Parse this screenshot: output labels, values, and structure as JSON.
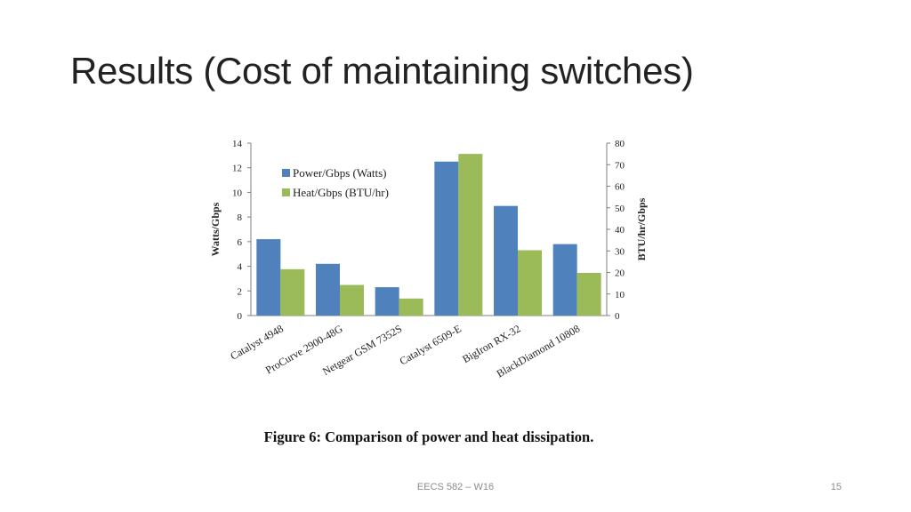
{
  "slide": {
    "title": "Results (Cost of maintaining switches)",
    "footer": "EECS 582 – W16",
    "page_number": "15"
  },
  "figure": {
    "caption": "Figure 6:  Comparison of power and heat dissipation."
  },
  "colors": {
    "power": "#4f81bd",
    "heat": "#9bbb59",
    "axis": "#7f7f7f"
  },
  "chart_data": {
    "type": "bar",
    "title": "",
    "categories": [
      "Catalyst 4948",
      "ProCurve 2900-48G",
      "Netgear GSM 7352S",
      "Catalyst 6509-E",
      "BigIron RX-32",
      "BlackDiamond 10808"
    ],
    "series": [
      {
        "name": "Power/Gbps (Watts)",
        "axis": "left",
        "values": [
          6.2,
          4.2,
          2.3,
          12.5,
          8.9,
          5.8
        ]
      },
      {
        "name": "Heat/Gbps (BTU/hr)",
        "axis": "right",
        "values": [
          21.5,
          14.2,
          7.9,
          75,
          30.3,
          19.8
        ]
      }
    ],
    "ylabel": "Watts/Gbps",
    "ylim": [
      0,
      14
    ],
    "yticks": [
      0,
      2,
      4,
      6,
      8,
      10,
      12,
      14
    ],
    "y2label": "BTU/hr/Gbps",
    "y2lim": [
      0,
      80
    ],
    "y2ticks": [
      0,
      10,
      20,
      30,
      40,
      50,
      60,
      70,
      80
    ],
    "legend": "top-left",
    "grid": false
  }
}
